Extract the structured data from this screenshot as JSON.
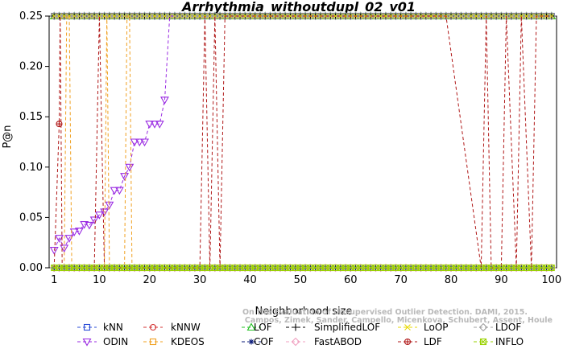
{
  "chart_data": {
    "type": "line",
    "title": "Arrhythmia_withoutdupl_02_v01",
    "xlabel": "Neighborhood size",
    "ylabel": "P@n",
    "xlim": [
      0,
      101
    ],
    "ylim": [
      0,
      0.25
    ],
    "xticks": [
      1,
      10,
      20,
      30,
      40,
      50,
      60,
      70,
      80,
      90,
      100
    ],
    "yticks": [
      0.0,
      0.05,
      0.1,
      0.15,
      0.2,
      0.25
    ],
    "ytick_labels": [
      "0.00",
      "0.05",
      "0.10",
      "0.15",
      "0.20",
      "0.25"
    ],
    "grid": false,
    "legend_position": "bottom",
    "series": [
      {
        "name": "kNN",
        "color": "#2a4bd7",
        "marker": "square",
        "x": [
          1,
          100
        ],
        "y": [
          0.25,
          0.25
        ]
      },
      {
        "name": "kNNW",
        "color": "#d33333",
        "marker": "circle",
        "x": [
          1,
          100
        ],
        "y": [
          0.25,
          0.25
        ]
      },
      {
        "name": "LOF",
        "color": "#22c022",
        "marker": "triangle-up",
        "x": [
          1,
          100
        ],
        "y": [
          0.25,
          0.25
        ]
      },
      {
        "name": "SimplifiedLOF",
        "color": "#000000",
        "marker": "plus",
        "x": [
          1,
          100
        ],
        "y": [
          0.25,
          0.25
        ]
      },
      {
        "name": "LoOP",
        "color": "#e8d800",
        "marker": "x",
        "x": [
          1,
          100
        ],
        "y": [
          0.25,
          0.25
        ]
      },
      {
        "name": "LDOF",
        "color": "#a0a0a0",
        "marker": "diamond",
        "x": [
          1,
          100
        ],
        "y": [
          0.25,
          0.25
        ]
      },
      {
        "name": "ODIN",
        "color": "#9a2be2",
        "x": [
          1,
          2,
          3,
          4,
          5,
          6,
          7,
          8,
          9,
          10,
          11,
          12,
          13,
          14,
          15,
          16,
          17,
          18,
          19,
          20,
          21,
          22,
          23,
          24,
          25
        ],
        "y": [
          0.0175,
          0.0294,
          0.0196,
          0.0294,
          0.0357,
          0.0366,
          0.0431,
          0.0424,
          0.0476,
          0.0526,
          0.0556,
          0.0625,
          0.0769,
          0.077,
          0.0909,
          0.1,
          0.125,
          0.125,
          0.125,
          0.1429,
          0.1429,
          0.1429,
          0.1667,
          0.25,
          0.25
        ]
      },
      {
        "name": "KDEOS",
        "color": "#f0a020",
        "x": [
          1,
          2,
          3,
          3.5,
          4,
          4.5,
          5,
          10,
          11,
          11.5,
          12,
          14,
          15,
          15.5,
          16,
          16.5,
          17,
          100
        ],
        "y": [
          0.0,
          0.0,
          0.0,
          0.25,
          0.25,
          0.0,
          0.0,
          0.0,
          0.0,
          0.25,
          0.0,
          0.0,
          0.0,
          0.25,
          0.25,
          0.0,
          0.0,
          0.0
        ]
      },
      {
        "name": "COF",
        "color": "#0a1a7a",
        "marker": "star",
        "x": [
          1,
          100
        ],
        "y": [
          0.0,
          0.0
        ]
      },
      {
        "name": "FastABOD",
        "color": "#f0a0c0",
        "marker": "diamond",
        "x": [
          1,
          100
        ],
        "y": [
          0.0,
          0.0
        ]
      },
      {
        "name": "LDF",
        "color": "#b01818",
        "x": [
          1,
          2,
          2.2,
          2.6,
          3,
          9,
          10,
          11,
          30,
          31,
          32,
          33,
          34,
          35,
          79,
          86,
          87,
          88,
          90,
          91,
          93,
          94,
          96,
          97,
          100
        ],
        "y": [
          0.0,
          0.1429,
          0.25,
          0.0,
          0.0,
          0.0,
          0.25,
          0.0,
          0.0,
          0.25,
          0.0,
          0.25,
          0.0,
          0.25,
          0.25,
          0.0,
          0.25,
          0.0,
          0.0,
          0.25,
          0.0,
          0.25,
          0.0,
          0.25,
          0.25
        ]
      },
      {
        "name": "INFLO",
        "color": "#9ad200",
        "marker": "square-x",
        "x": [
          1,
          100
        ],
        "y": [
          0.0,
          0.0
        ]
      }
    ],
    "legend": [
      {
        "name": "kNN",
        "color": "#2a4bd7",
        "marker": "square"
      },
      {
        "name": "kNNW",
        "color": "#d33333",
        "marker": "circle"
      },
      {
        "name": "LOF",
        "color": "#22c022",
        "marker": "triangle-up"
      },
      {
        "name": "SimplifiedLOF",
        "color": "#000000",
        "marker": "plus"
      },
      {
        "name": "LoOP",
        "color": "#e8d800",
        "marker": "x"
      },
      {
        "name": "LDOF",
        "color": "#a0a0a0",
        "marker": "diamond"
      },
      {
        "name": "ODIN",
        "color": "#9a2be2",
        "marker": "triangle-down"
      },
      {
        "name": "KDEOS",
        "color": "#f0a020",
        "marker": "square"
      },
      {
        "name": "COF",
        "color": "#0a1a7a",
        "marker": "star"
      },
      {
        "name": "FastABOD",
        "color": "#f0a0c0",
        "marker": "diamond"
      },
      {
        "name": "LDF",
        "color": "#b01818",
        "marker": "circle-dot"
      },
      {
        "name": "INFLO",
        "color": "#9ad200",
        "marker": "square-x"
      }
    ],
    "watermark": [
      "Campos, Zimek, Sander, Campello, Micenkova, Schubert, Assent, Houle",
      "On the Evaluation of Unsupervised Outlier Detection. DAMI, 2015."
    ]
  }
}
